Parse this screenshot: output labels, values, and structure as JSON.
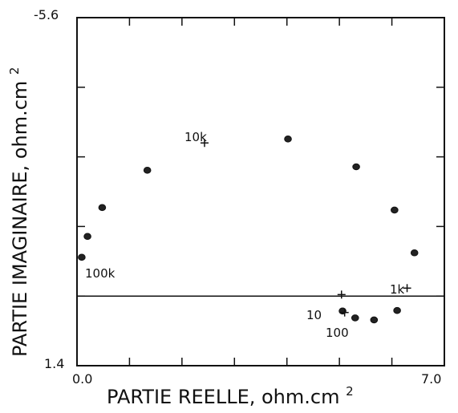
{
  "chart_data": {
    "type": "scatter",
    "title": "",
    "xlabel": "PARTIE REELLE, ohm.cm",
    "xlabel_superscript": "2",
    "ylabel": "PARTIE IMAGINAIRE, ohm.cm",
    "ylabel_superscript": "2",
    "xlim": [
      0.0,
      7.0
    ],
    "ylim": [
      1.4,
      -5.6
    ],
    "x_tick_labels": [
      "0.0",
      "7.0"
    ],
    "y_tick_labels": [
      "-5.6",
      "1.4"
    ],
    "grid": false,
    "legend": "none",
    "reference_line": {
      "y": 0.0
    },
    "series": [
      {
        "marker": "dot",
        "points": [
          {
            "x": 0.09,
            "y": -0.78
          },
          {
            "x": 0.2,
            "y": -1.2
          },
          {
            "x": 0.48,
            "y": -1.78
          },
          {
            "x": 1.34,
            "y": -2.53
          },
          {
            "x": 4.02,
            "y": -3.16
          },
          {
            "x": 5.32,
            "y": -2.6
          },
          {
            "x": 6.05,
            "y": -1.73
          },
          {
            "x": 6.43,
            "y": -0.87
          },
          {
            "x": 5.06,
            "y": 0.3
          },
          {
            "x": 5.3,
            "y": 0.44
          },
          {
            "x": 5.66,
            "y": 0.48
          },
          {
            "x": 6.1,
            "y": 0.29
          }
        ]
      }
    ],
    "annotations": [
      {
        "text": "100k",
        "x": 0.09,
        "y": -0.78,
        "marker": "none"
      },
      {
        "text": "10k",
        "x": 2.43,
        "y": -3.08,
        "marker": "plus"
      },
      {
        "text": "1k",
        "x": 6.29,
        "y": -0.16,
        "marker": "plus"
      },
      {
        "text": "10",
        "x": 5.1,
        "y": 0.33,
        "marker": "plus"
      },
      {
        "text": "100",
        "x": 5.62,
        "y": 0.55,
        "marker": "none"
      },
      {
        "text": "",
        "x": 5.04,
        "y": -0.03,
        "marker": "plus"
      }
    ]
  }
}
